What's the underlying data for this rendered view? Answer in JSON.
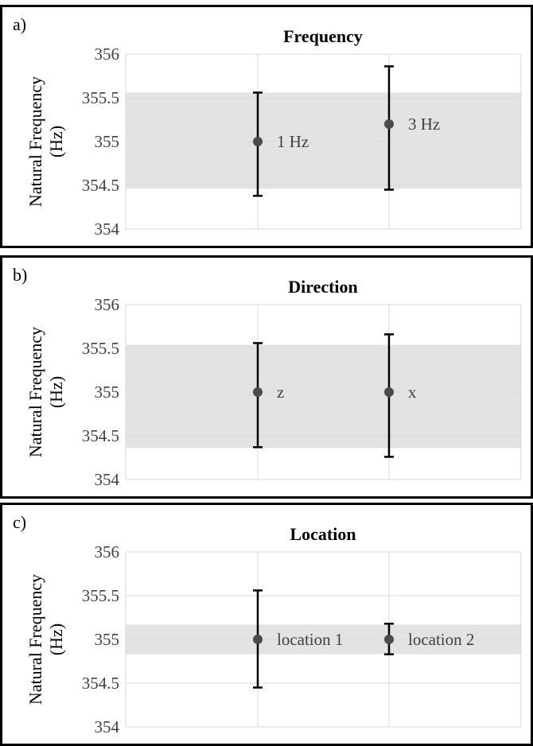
{
  "chart_data": [
    {
      "type": "scatter",
      "panel_label": "a)",
      "title": "Frequency",
      "ylabel": "Natural Frequency\n(Hz)",
      "ylim": [
        354,
        356
      ],
      "yticks": [
        "354",
        "354.5",
        "355",
        "355.5",
        "356"
      ],
      "band": [
        354.46,
        355.56
      ],
      "band_color": "#e3e3e3",
      "error_bar_color": "#000000",
      "marker_color": "#4a4a4a",
      "points": [
        {
          "label": "1 Hz",
          "value": 355.0,
          "low": 354.38,
          "high": 355.56
        },
        {
          "label": "3 Hz",
          "value": 355.2,
          "low": 354.45,
          "high": 355.86
        }
      ]
    },
    {
      "type": "scatter",
      "panel_label": "b)",
      "title": "Direction",
      "ylabel": "Natural Frequency\n(Hz)",
      "ylim": [
        354,
        356
      ],
      "yticks": [
        "354",
        "354.5",
        "355",
        "355.5",
        "356"
      ],
      "band": [
        354.36,
        355.54
      ],
      "band_color": "#e3e3e3",
      "error_bar_color": "#000000",
      "marker_color": "#4a4a4a",
      "points": [
        {
          "label": "z",
          "value": 355.0,
          "low": 354.37,
          "high": 355.56
        },
        {
          "label": "x",
          "value": 355.0,
          "low": 354.26,
          "high": 355.66
        }
      ]
    },
    {
      "type": "scatter",
      "panel_label": "c)",
      "title": "Location",
      "ylabel": "Natural Frequency\n(Hz)",
      "ylim": [
        354,
        356
      ],
      "yticks": [
        "354",
        "354.5",
        "355",
        "355.5",
        "356"
      ],
      "band": [
        354.83,
        355.17
      ],
      "band_color": "#e3e3e3",
      "error_bar_color": "#000000",
      "marker_color": "#4a4a4a",
      "points": [
        {
          "label": "location 1",
          "value": 355.0,
          "low": 354.45,
          "high": 355.56
        },
        {
          "label": "location 2",
          "value": 355.0,
          "low": 354.83,
          "high": 355.18
        }
      ]
    }
  ]
}
